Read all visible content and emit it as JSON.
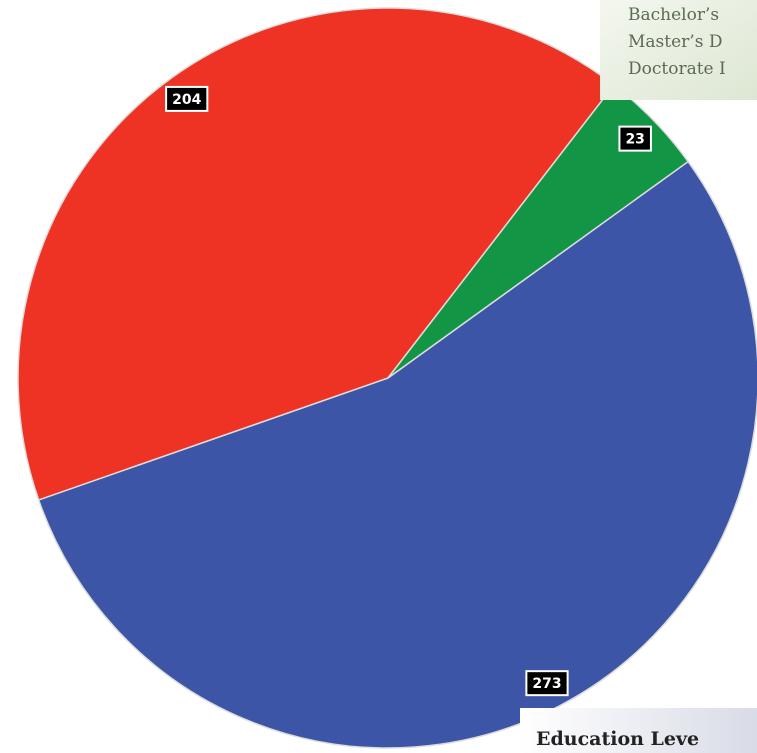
{
  "chart_data": {
    "type": "pie",
    "title": "Education Leve",
    "categories": [
      "Bachelor’s",
      "Master’s D",
      "Doctorate I"
    ],
    "values": [
      273,
      204,
      23
    ],
    "colors": [
      "#3d55a6",
      "#ee3325",
      "#129645"
    ]
  }
}
